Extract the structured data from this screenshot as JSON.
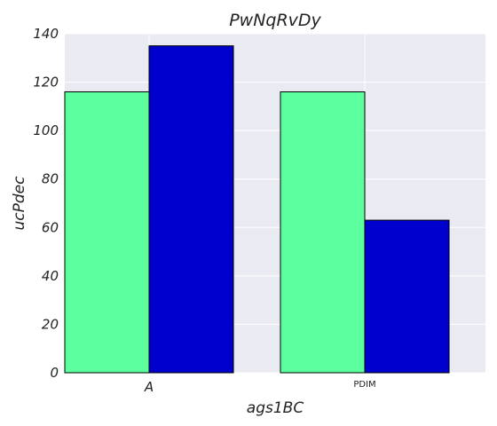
{
  "chart_data": {
    "type": "bar",
    "title": "PwNqRvDy",
    "xlabel": "ags1BC",
    "ylabel": "ucPdec",
    "categories": [
      "A",
      "PDIM"
    ],
    "series": [
      {
        "values": [
          116,
          116
        ],
        "color": "#5cff9d"
      },
      {
        "values": [
          135,
          63
        ],
        "color": "#0000cc"
      }
    ],
    "ylim": [
      0,
      140
    ],
    "yticks": [
      0,
      20,
      40,
      60,
      80,
      100,
      120,
      140
    ],
    "grid": true,
    "background_color": "#eaeaf2",
    "legend": "none"
  }
}
